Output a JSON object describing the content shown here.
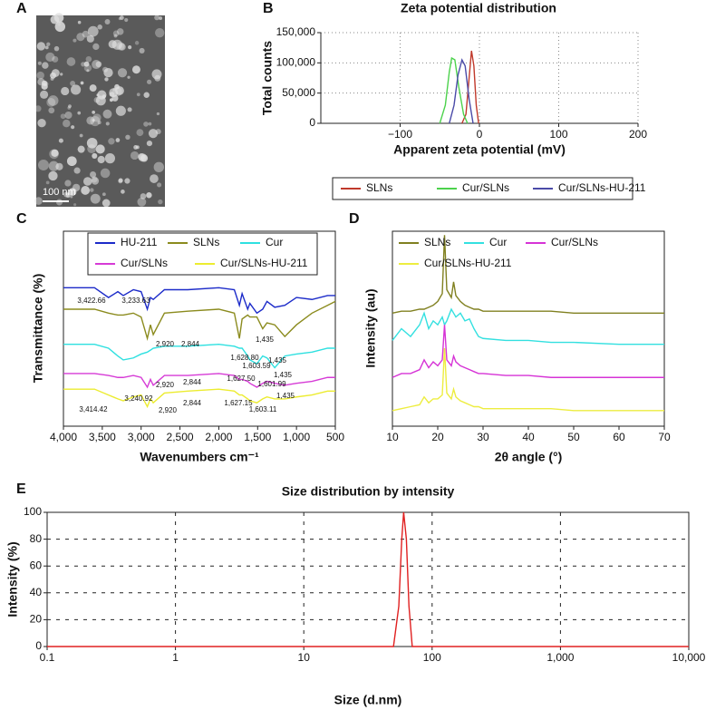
{
  "image": {
    "panel": "A",
    "scale_bar": "100 nm"
  },
  "chart_data": [
    {
      "panel": "B",
      "type": "line",
      "title": "Zeta potential distribution",
      "xlabel": "Apparent zeta potential (mV)",
      "ylabel": "Total counts",
      "xlim": [
        -200,
        200
      ],
      "xticks": [
        {
          "value": -100,
          "label": "−100"
        },
        0,
        100,
        200
      ],
      "ylim": [
        0,
        150000
      ],
      "yticks": [
        0,
        {
          "value": 50000,
          "label": "50,000"
        },
        {
          "value": 100000,
          "label": "100,000"
        },
        {
          "value": 150000,
          "label": "150,000"
        }
      ],
      "grid": true,
      "legend": "below",
      "series": [
        {
          "name": "SLNs",
          "color": "#c0392b",
          "x": [
            -22,
            -17,
            -13,
            -10,
            -7,
            -4,
            -1
          ],
          "values": [
            0,
            15000,
            75000,
            120000,
            95000,
            30000,
            0
          ]
        },
        {
          "name": "Cur/SLNs",
          "color": "#4cd24c",
          "x": [
            -50,
            -43,
            -38,
            -35,
            -31,
            -26,
            -20,
            -15
          ],
          "values": [
            0,
            30000,
            85000,
            108000,
            105000,
            60000,
            15000,
            0
          ]
        },
        {
          "name": "Cur/SLNs-HU-211",
          "color": "#4a4aa8",
          "x": [
            -38,
            -32,
            -27,
            -22,
            -18,
            -13,
            -8
          ],
          "values": [
            0,
            30000,
            80000,
            105000,
            95000,
            40000,
            0
          ]
        }
      ]
    },
    {
      "panel": "C",
      "type": "line",
      "xlabel": "Wavenumbers cm⁻¹",
      "ylabel": "Transmittance (%)",
      "xlim": [
        4000,
        500
      ],
      "xticks": [
        {
          "value": 4000,
          "label": "4,000"
        },
        {
          "value": 3500,
          "label": "3,500"
        },
        {
          "value": 3000,
          "label": "3,000"
        },
        {
          "value": 2500,
          "label": "2,500"
        },
        {
          "value": 2000,
          "label": "2,000"
        },
        {
          "value": 1500,
          "label": "1,500"
        },
        {
          "value": 1000,
          "label": "1,000"
        },
        500
      ],
      "ylim": [
        0,
        100
      ],
      "grid": false,
      "legend": "top",
      "x": [
        4000,
        3600,
        3420,
        3300,
        3230,
        3100,
        3000,
        2920,
        2880,
        2844,
        2700,
        2400,
        2000,
        1800,
        1735,
        1700,
        1628,
        1600,
        1510,
        1435,
        1380,
        1280,
        1150,
        1000,
        800,
        600,
        500
      ],
      "series": [
        {
          "name": "HU-211",
          "color": "#1c2bc9",
          "values": [
            71,
            71,
            66,
            69,
            67,
            70,
            69,
            60,
            66,
            65,
            70,
            70,
            71,
            70,
            62,
            68,
            60,
            63,
            58,
            60,
            64,
            61,
            62,
            66,
            65,
            67,
            67
          ]
        },
        {
          "name": "SLNs",
          "color": "#8b8b1e",
          "values": [
            60,
            60,
            58,
            57,
            57,
            58,
            56,
            45,
            52,
            47,
            58,
            59,
            60,
            58,
            45,
            55,
            57,
            56,
            56,
            50,
            53,
            52,
            46,
            52,
            58,
            62,
            64
          ]
        },
        {
          "name": "Cur",
          "color": "#2ee0e0",
          "values": [
            42,
            42,
            40,
            36,
            34,
            35,
            37,
            38,
            39,
            40,
            41,
            41,
            42,
            41,
            40,
            40,
            36,
            34,
            32,
            36,
            35,
            30,
            36,
            37,
            38,
            40,
            40
          ]
        },
        {
          "name": "Cur/SLNs",
          "color": "#d63bd6",
          "values": [
            27,
            27,
            26,
            25,
            25,
            26,
            25,
            20,
            24,
            21,
            26,
            26,
            27,
            26,
            24,
            24,
            23,
            22,
            20,
            22,
            23,
            22,
            21,
            22,
            23,
            25,
            25
          ]
        },
        {
          "name": "Cur/SLNs-HU-211",
          "color": "#ecec30",
          "values": [
            19,
            19,
            16,
            14,
            13,
            15,
            16,
            10,
            14,
            12,
            17,
            18,
            19,
            18,
            16,
            16,
            14,
            13,
            12,
            14,
            15,
            14,
            14,
            15,
            16,
            18,
            18
          ]
        }
      ],
      "annotations": [
        "3,422.66",
        "3,233.63",
        "2,920",
        "2,844",
        "1,435",
        "1,628.80",
        "1,603.59",
        "1,435",
        "2,920",
        "2,844",
        "1,627.50",
        "1,601.99",
        "1,435",
        "3,414.42",
        "3,240.92",
        "2,920",
        "2,844",
        "1,627.15",
        "1,603.11",
        "1,435"
      ]
    },
    {
      "panel": "D",
      "type": "line",
      "xlabel": "2θ angle (°)",
      "ylabel": "Intensity (au)",
      "xlim": [
        10,
        70
      ],
      "xticks": [
        10,
        20,
        30,
        40,
        50,
        60,
        70
      ],
      "ylim": [
        0,
        100
      ],
      "grid": false,
      "legend": "top",
      "x": [
        10,
        12,
        14,
        16,
        17,
        18,
        19,
        20,
        21,
        21.5,
        22,
        23,
        23.5,
        24,
        25,
        26,
        27,
        28,
        29,
        30,
        35,
        40,
        45,
        50,
        60,
        70
      ],
      "series": [
        {
          "name": "SLNs",
          "color": "#808020",
          "values": [
            58,
            59,
            59,
            60,
            60,
            61,
            62,
            64,
            68,
            98,
            70,
            66,
            74,
            67,
            64,
            62,
            61,
            60,
            60,
            59,
            59,
            59,
            59,
            58,
            58,
            58
          ]
        },
        {
          "name": "Cur",
          "color": "#33e0e0",
          "values": [
            44,
            50,
            46,
            52,
            58,
            50,
            54,
            52,
            56,
            52,
            54,
            60,
            58,
            56,
            58,
            54,
            55,
            50,
            46,
            45,
            44,
            44,
            43,
            43,
            42,
            42
          ]
        },
        {
          "name": "Cur/SLNs",
          "color": "#d633d6",
          "values": [
            25,
            27,
            27,
            29,
            34,
            30,
            33,
            31,
            34,
            52,
            34,
            31,
            36,
            33,
            31,
            30,
            29,
            28,
            27,
            27,
            26,
            26,
            25,
            25,
            25,
            25
          ]
        },
        {
          "name": "Cur/SLNs-HU-211",
          "color": "#eded40",
          "values": [
            8,
            9,
            10,
            11,
            15,
            12,
            14,
            14,
            16,
            40,
            17,
            14,
            19,
            15,
            13,
            12,
            11,
            10,
            10,
            9,
            9,
            9,
            9,
            8,
            8,
            8
          ]
        }
      ]
    },
    {
      "panel": "E",
      "type": "line",
      "title": "Size distribution by intensity",
      "xlabel": "Size (d.nm)",
      "ylabel": "Intensity (%)",
      "log_x": true,
      "xlim": [
        0.1,
        10000
      ],
      "xticks": [
        0.1,
        1,
        10,
        100,
        {
          "value": 1000,
          "label": "1,000"
        },
        {
          "value": 10000,
          "label": "10,000"
        }
      ],
      "ylim": [
        0,
        100
      ],
      "yticks": [
        0,
        20,
        40,
        60,
        80,
        100
      ],
      "grid": true,
      "series": [
        {
          "color": "#e02020",
          "x": [
            0.1,
            0.4,
            40,
            50,
            55,
            58,
            60,
            63,
            66,
            70,
            10000
          ],
          "values": [
            0,
            0,
            0,
            0,
            30,
            80,
            100,
            80,
            30,
            0,
            0
          ]
        }
      ]
    }
  ]
}
